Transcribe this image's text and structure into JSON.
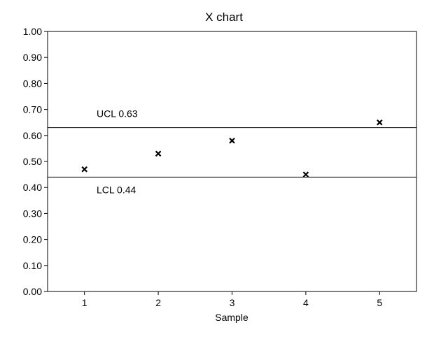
{
  "chart_data": {
    "type": "scatter",
    "title": "X chart",
    "xlabel": "Sample",
    "ylabel": "",
    "x": [
      1,
      2,
      3,
      4,
      5
    ],
    "values": [
      0.47,
      0.53,
      0.58,
      0.45,
      0.65
    ],
    "xlim": [
      0.5,
      5.5
    ],
    "ylim": [
      0,
      1
    ],
    "xticks": [
      "1",
      "2",
      "3",
      "4",
      "5"
    ],
    "yticks": [
      "0.00",
      "0.10",
      "0.20",
      "0.30",
      "0.40",
      "0.50",
      "0.60",
      "0.70",
      "0.80",
      "0.90",
      "1.00"
    ],
    "marker": "x",
    "grid": false,
    "control_limits": [
      {
        "label": "UCL 0.63",
        "value": 0.63
      },
      {
        "label": "LCL 0.44",
        "value": 0.44
      }
    ],
    "colors": {
      "line": "#000000",
      "marker": "#000000"
    }
  }
}
